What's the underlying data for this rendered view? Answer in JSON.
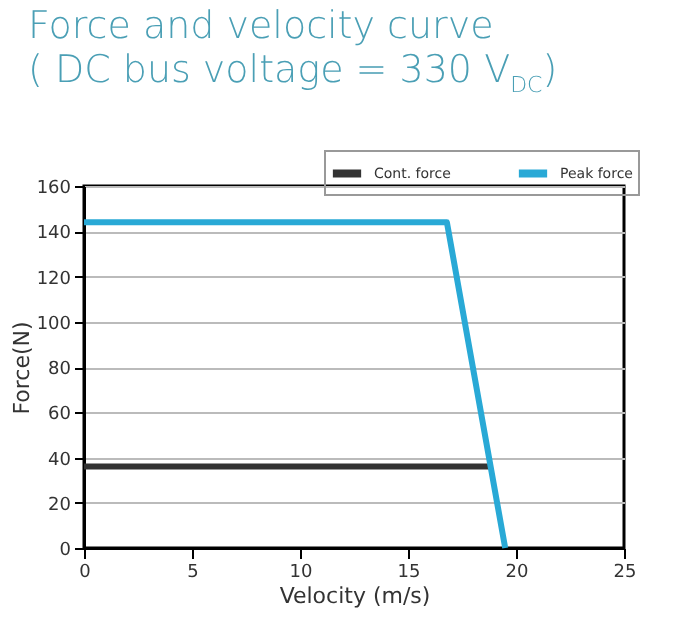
{
  "chart_data": {
    "type": "line",
    "title": "Force and velocity curve",
    "subtitle": "( DC bus voltage = 330 V$_{DC}$)",
    "xlabel": "Velocity (m/s)",
    "ylabel": "Force(N)",
    "xlim": [
      0,
      25
    ],
    "xticks": [
      0,
      5,
      10,
      15,
      20,
      25
    ],
    "ylim": [
      0,
      160
    ],
    "yticks": [
      0,
      20,
      40,
      60,
      80,
      100,
      120,
      140,
      160
    ],
    "grid": "y",
    "legend": "top right",
    "marker": "none",
    "line_style": "solid",
    "series": [
      {
        "name": "Cont. force",
        "color": "#333333",
        "x": [
          0,
          18.8
        ],
        "values": [
          36,
          36
        ]
      },
      {
        "name": "Peak force",
        "color": "#29a9d6",
        "x": [
          0,
          16.8,
          19.5
        ],
        "values": [
          144,
          144,
          0
        ]
      }
    ]
  }
}
